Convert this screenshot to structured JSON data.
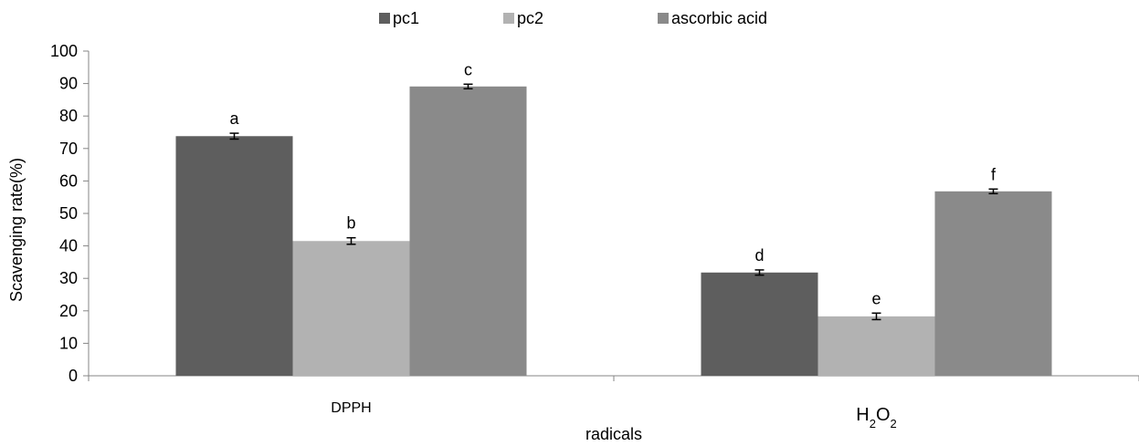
{
  "chart_data": {
    "type": "bar",
    "categories": [
      "DPPH",
      "H2O2"
    ],
    "series": [
      {
        "name": "pc1",
        "color": "#5e5e5e",
        "values": [
          73.8,
          31.8
        ],
        "errors": [
          0.9,
          0.8
        ],
        "labels": [
          "a",
          "d"
        ]
      },
      {
        "name": "pc2",
        "color": "#b2b2b2",
        "values": [
          41.5,
          18.3
        ],
        "errors": [
          1.0,
          1.0
        ],
        "labels": [
          "b",
          "e"
        ]
      },
      {
        "name": "ascorbic acid",
        "color": "#8a8a8a",
        "values": [
          89.1,
          56.8
        ],
        "errors": [
          0.7,
          0.7
        ],
        "labels": [
          "c",
          "f"
        ]
      }
    ],
    "xlabel": "radicals",
    "ylabel": "Scavenging rate(%)",
    "ylim": [
      0,
      100
    ],
    "yticks": [
      0,
      10,
      20,
      30,
      40,
      50,
      60,
      70,
      80,
      90,
      100
    ],
    "grid": false,
    "legend_position": "top-center"
  }
}
